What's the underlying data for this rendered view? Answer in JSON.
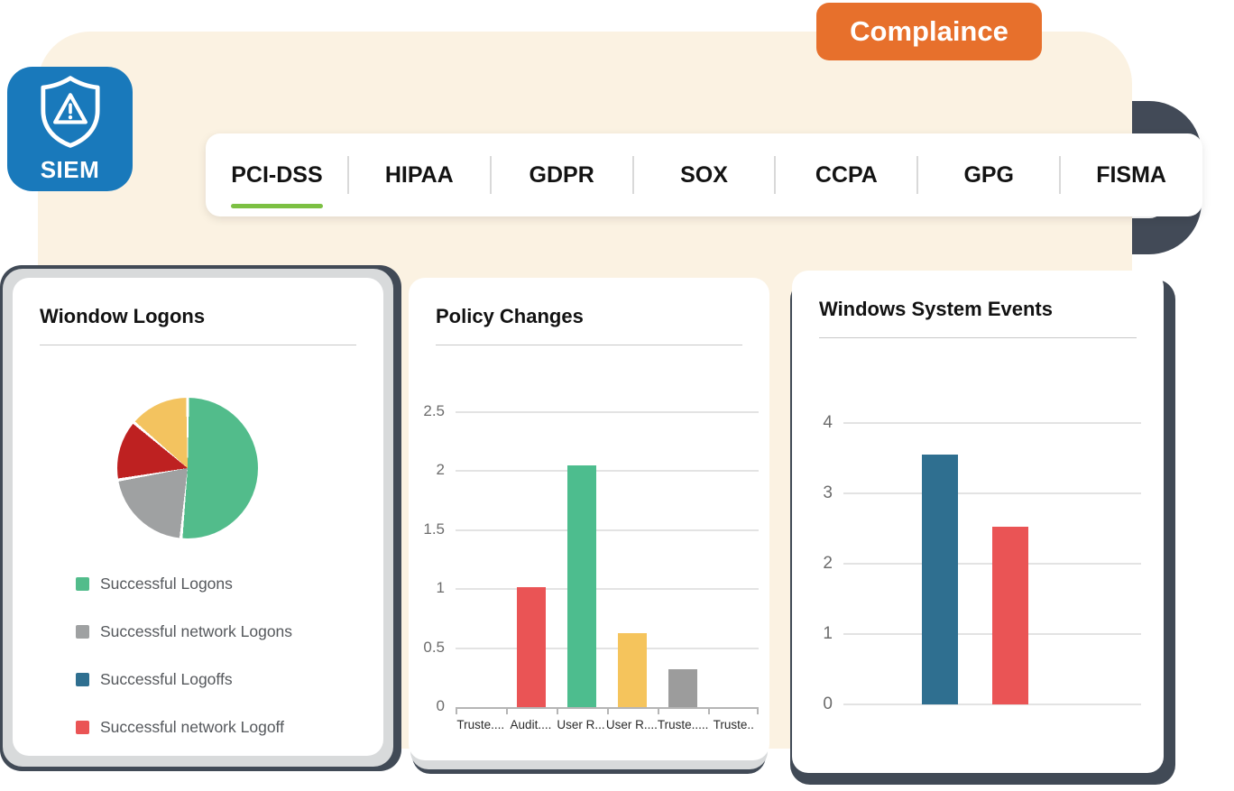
{
  "badge": {
    "label": "Complaince",
    "color": "#E7702C"
  },
  "logo": {
    "label": "SIEM",
    "color": "#1979BB",
    "icon": "shield-alert-icon"
  },
  "tabs": {
    "items": [
      {
        "label": "PCI-DSS",
        "active": true
      },
      {
        "label": "HIPAA",
        "active": false
      },
      {
        "label": "GDPR",
        "active": false
      },
      {
        "label": "SOX",
        "active": false
      },
      {
        "label": "CCPA",
        "active": false
      },
      {
        "label": "GPG",
        "active": false
      },
      {
        "label": "FISMA",
        "active": false
      }
    ],
    "active_underline_color": "#7CC043"
  },
  "cards": [
    {
      "title": "Wiondow Logons"
    },
    {
      "title": "Policy Changes"
    },
    {
      "title": "Windows System Events"
    }
  ],
  "chart_data": [
    {
      "type": "pie",
      "title": "Wiondow Logons",
      "labels": [
        "Successful Logons",
        "Successful network Logons",
        "Successful Logoffs",
        "Successful network Logoff"
      ],
      "values_percent": [
        51.5,
        20.8,
        13.9,
        13.8
      ],
      "slice_colors": [
        "#52BC8B",
        "#9FA1A2",
        "#BE2121",
        "#F3C35F"
      ],
      "legend_colors": [
        "#52BC8B",
        "#9FA1A2",
        "#2F6F90",
        "#EA5455"
      ],
      "legend_position": "bottom"
    },
    {
      "type": "bar",
      "title": "Policy Changes",
      "categories": [
        "Truste....",
        "Audit....",
        "User R...",
        "User R....",
        "Truste.....",
        "Truste.."
      ],
      "values": [
        0,
        1.02,
        2.05,
        0.63,
        0.32,
        0
      ],
      "bar_colors": [
        "",
        "#EA5455",
        "#4DBD8E",
        "#F5C45C",
        "#9C9C9C",
        ""
      ],
      "ylim": [
        0,
        2.5
      ],
      "yticks": [
        0,
        0.5,
        1,
        1.5,
        2,
        2.5
      ],
      "grid": true,
      "legend_position": "none"
    },
    {
      "type": "bar",
      "title": "Windows System Events",
      "categories": [
        "",
        ""
      ],
      "values": [
        3.55,
        2.53
      ],
      "bar_colors": [
        "#2F6F90",
        "#EA5455"
      ],
      "ylim": [
        0,
        4
      ],
      "yticks": [
        0,
        1,
        2,
        3,
        4
      ],
      "grid": true,
      "legend_position": "none"
    }
  ]
}
